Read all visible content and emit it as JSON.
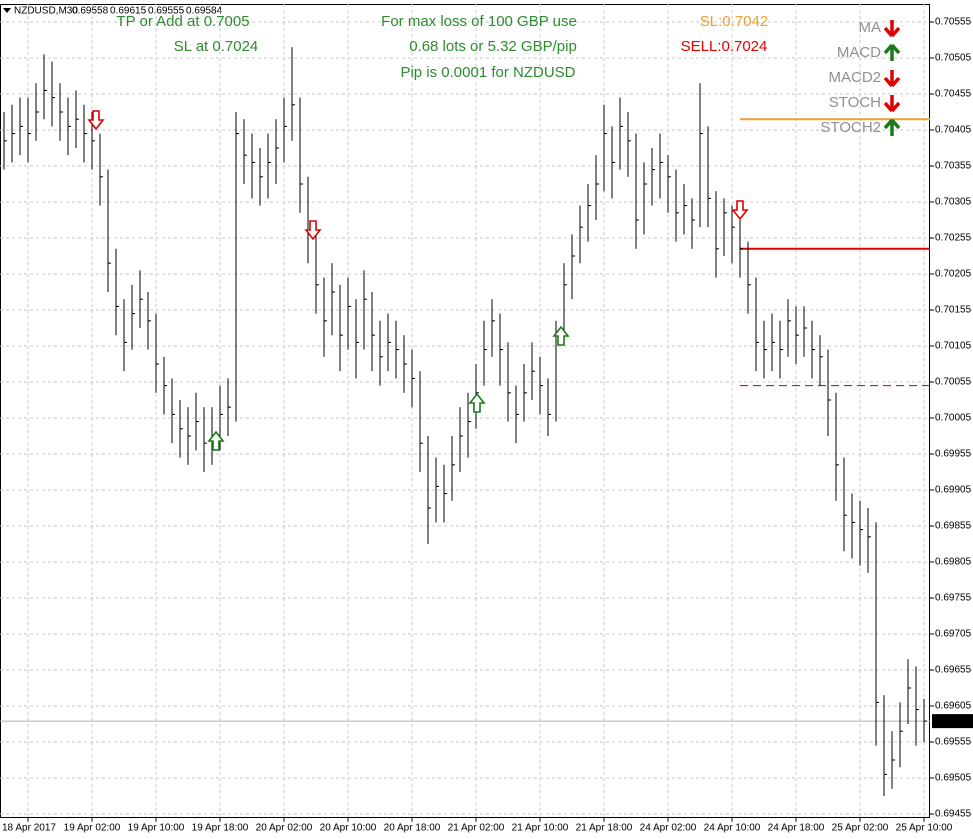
{
  "chart_data": {
    "type": "ohlc",
    "symbol": "NZDUSD,M30",
    "ohlc_label": [
      0.69558,
      0.69615,
      0.69555,
      0.69584
    ],
    "ylim": [
      0.6945,
      0.7058
    ],
    "yticks": [
      0.69455,
      0.69505,
      0.69555,
      0.69605,
      0.69655,
      0.69705,
      0.69755,
      0.69805,
      0.69855,
      0.69905,
      0.69955,
      0.70005,
      0.70055,
      0.70105,
      0.70155,
      0.70205,
      0.70255,
      0.70305,
      0.70355,
      0.70405,
      0.70455,
      0.70505,
      0.70555
    ],
    "grid": true,
    "color": "#000000",
    "categories": [
      null,
      null,
      null,
      "18 Apr 2017",
      null,
      null,
      null,
      null,
      null,
      null,
      null,
      "19 Apr 02:00",
      null,
      null,
      null,
      null,
      null,
      null,
      null,
      "19 Apr 10:00",
      null,
      null,
      null,
      null,
      null,
      null,
      null,
      "19 Apr 18:00",
      null,
      null,
      null,
      null,
      null,
      null,
      null,
      "20 Apr 02:00",
      null,
      null,
      null,
      null,
      null,
      null,
      null,
      "20 Apr 10:00",
      null,
      null,
      null,
      null,
      null,
      null,
      null,
      "20 Apr 18:00",
      null,
      null,
      null,
      null,
      null,
      null,
      null,
      "21 Apr 02:00",
      null,
      null,
      null,
      null,
      null,
      null,
      null,
      "21 Apr 10:00",
      null,
      null,
      null,
      null,
      null,
      null,
      null,
      "21 Apr 18:00",
      null,
      null,
      null,
      null,
      null,
      null,
      null,
      "24 Apr 02:00",
      null,
      null,
      null,
      null,
      null,
      null,
      null,
      "24 Apr 10:00",
      null,
      null,
      null,
      null,
      null,
      null,
      null,
      "24 Apr 18:00",
      null,
      null,
      null,
      null,
      null,
      null,
      null,
      "25 Apr 02:00",
      null,
      null,
      null,
      null,
      null,
      null,
      null,
      "25 Apr 10:00"
    ],
    "high": [
      0.7043,
      0.7044,
      0.7045,
      0.7045,
      0.7047,
      0.7051,
      0.705,
      0.7047,
      0.7045,
      0.7046,
      0.7044,
      0.7043,
      0.704,
      0.7035,
      0.7024,
      0.7017,
      0.7019,
      0.7021,
      0.7018,
      0.7015,
      0.7009,
      0.7006,
      0.7003,
      0.7002,
      0.7004,
      0.7002,
      0.7002,
      0.7005,
      0.7006,
      0.7043,
      0.7042,
      0.704,
      0.7038,
      0.704,
      0.7042,
      0.7045,
      0.7052,
      0.7045,
      0.7034,
      0.7027,
      0.702,
      0.7022,
      0.7019,
      0.702,
      0.7017,
      0.7021,
      0.7018,
      0.7014,
      0.7015,
      0.7014,
      0.7012,
      0.701,
      0.7007,
      0.6998,
      0.6995,
      0.6994,
      0.6998,
      0.7002,
      0.7004,
      0.7008,
      0.7014,
      0.7017,
      0.7015,
      0.7011,
      0.7005,
      0.7008,
      0.7011,
      0.7009,
      0.7006,
      0.7014,
      0.7022,
      0.7026,
      0.703,
      0.7033,
      0.7037,
      0.7044,
      0.7041,
      0.7045,
      0.7043,
      0.704,
      0.7036,
      0.7038,
      0.704,
      0.7037,
      0.7035,
      0.7033,
      0.7031,
      0.7047,
      0.7041,
      0.7032,
      0.7031,
      0.703,
      0.7028,
      0.7025,
      0.702,
      0.7014,
      0.7015,
      0.7014,
      0.7017,
      0.7016,
      0.7016,
      0.7014,
      0.7012,
      0.701,
      0.7004,
      0.6995,
      0.699,
      0.6989,
      0.6988,
      0.6986,
      0.6962,
      0.6957,
      0.6961,
      0.6967,
      0.6966,
      0.69615
    ],
    "low": [
      0.7035,
      0.7036,
      0.7037,
      0.7036,
      0.7039,
      0.7042,
      0.7041,
      0.7039,
      0.7037,
      0.7038,
      0.7036,
      0.7035,
      0.703,
      0.7018,
      0.7012,
      0.7007,
      0.701,
      0.7013,
      0.701,
      0.7004,
      0.7001,
      0.6997,
      0.6995,
      0.6994,
      0.6996,
      0.6993,
      0.6994,
      0.6996,
      0.6998,
      0.7,
      0.7033,
      0.7031,
      0.703,
      0.7031,
      0.7033,
      0.7036,
      0.7039,
      0.7029,
      0.7022,
      0.7015,
      0.7009,
      0.7012,
      0.7007,
      0.701,
      0.7006,
      0.701,
      0.7007,
      0.7005,
      0.7007,
      0.7006,
      0.7004,
      0.7002,
      0.6993,
      0.6983,
      0.6986,
      0.6986,
      0.6989,
      0.6993,
      0.6995,
      0.6999,
      0.7005,
      0.7009,
      0.7005,
      0.7,
      0.6997,
      0.7,
      0.7003,
      0.7001,
      0.6998,
      0.7,
      0.7011,
      0.7017,
      0.7022,
      0.7025,
      0.7028,
      0.7032,
      0.7031,
      0.7035,
      0.7034,
      0.7024,
      0.7026,
      0.703,
      0.7031,
      0.7029,
      0.7025,
      0.7026,
      0.7024,
      0.7027,
      0.7027,
      0.702,
      0.7023,
      0.7022,
      0.702,
      0.7015,
      0.7007,
      0.7006,
      0.7007,
      0.7006,
      0.7009,
      0.7008,
      0.7009,
      0.7006,
      0.7005,
      0.6998,
      0.6989,
      0.6982,
      0.6981,
      0.698,
      0.6979,
      0.6955,
      0.6948,
      0.6949,
      0.6952,
      0.6958,
      0.6955,
      0.69555
    ],
    "close": [
      0.7039,
      0.704,
      0.7041,
      0.704,
      0.7043,
      0.7046,
      0.7045,
      0.7043,
      0.7041,
      0.7042,
      0.704,
      0.7039,
      0.7034,
      0.7022,
      0.7016,
      0.7011,
      0.7015,
      0.7017,
      0.7014,
      0.7008,
      0.7005,
      0.7001,
      0.6999,
      0.6998,
      0.7,
      0.6997,
      0.6998,
      0.7001,
      0.7002,
      0.704,
      0.7037,
      0.7036,
      0.7034,
      0.7036,
      0.7038,
      0.7041,
      0.7044,
      0.7033,
      0.7026,
      0.7019,
      0.7014,
      0.7018,
      0.7012,
      0.7016,
      0.7011,
      0.7017,
      0.7012,
      0.7009,
      0.7011,
      0.701,
      0.7008,
      0.7006,
      0.6997,
      0.6988,
      0.6991,
      0.699,
      0.6994,
      0.6998,
      0.7,
      0.7004,
      0.701,
      0.7014,
      0.701,
      0.7004,
      0.7001,
      0.7004,
      0.7007,
      0.7005,
      0.7001,
      0.7012,
      0.7019,
      0.7023,
      0.7027,
      0.703,
      0.7033,
      0.704,
      0.7036,
      0.7041,
      0.7039,
      0.7028,
      0.7033,
      0.7035,
      0.7036,
      0.7034,
      0.7029,
      0.703,
      0.7028,
      0.704,
      0.7031,
      0.7024,
      0.7029,
      0.7027,
      0.7024,
      0.7019,
      0.7011,
      0.701,
      0.7011,
      0.701,
      0.7014,
      0.7012,
      0.7013,
      0.701,
      0.7009,
      0.7003,
      0.6994,
      0.6987,
      0.6986,
      0.6985,
      0.6984,
      0.6961,
      0.6951,
      0.6953,
      0.6957,
      0.6963,
      0.696,
      0.69584
    ],
    "current_price": 0.69584,
    "levels": [
      {
        "value": 0.7042,
        "color": "#f0a030",
        "style": "solid"
      },
      {
        "value": 0.7024,
        "color": "#e00000",
        "style": "solid"
      },
      {
        "value": 0.7005,
        "color": "#c00000",
        "style": "dashed"
      }
    ],
    "annotations": [
      {
        "text": "TP or Add at 0.7005",
        "color": "#2e8b2e"
      },
      {
        "text": "SL at 0.7024",
        "color": "#2e8b2e"
      },
      {
        "text": "For max loss of 100 GBP use",
        "color": "#2e8b2e"
      },
      {
        "text": "0.68 lots or 5.32 GBP/pip",
        "color": "#2e8b2e"
      },
      {
        "text": "Pip is 0.0001 for NZDUSD",
        "color": "#2e8b2e"
      },
      {
        "text": "SL:0.7042",
        "color": "#f0a030"
      },
      {
        "text": "SELL:0.7024",
        "color": "#e00000"
      }
    ],
    "indicators": [
      {
        "name": "MA",
        "direction": "down",
        "color": "#e00000"
      },
      {
        "name": "MACD",
        "direction": "up",
        "color": "#1a7a1a"
      },
      {
        "name": "MACD2",
        "direction": "down",
        "color": "#e00000"
      },
      {
        "name": "STOCH",
        "direction": "down",
        "color": "#e00000"
      },
      {
        "name": "STOCH2",
        "direction": "up",
        "color": "#1a7a1a"
      }
    ]
  }
}
